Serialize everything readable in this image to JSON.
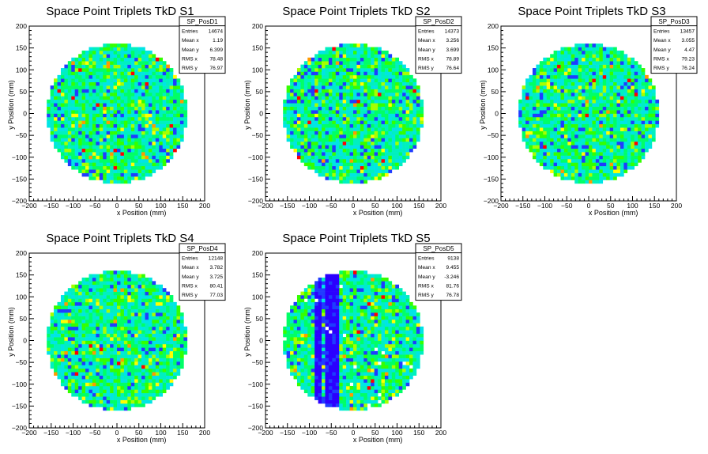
{
  "chart_data": [
    {
      "type": "heatmap",
      "title": "Space Point Triplets TkD S1",
      "xlabel": "x Position (mm)",
      "ylabel": "y Position (mm)",
      "xlim": [
        -200,
        200
      ],
      "ylim": [
        -200,
        200
      ],
      "x_ticks": [
        "−200",
        "−150",
        "−100",
        "−50",
        "0",
        "50",
        "100",
        "150",
        "200"
      ],
      "y_ticks": [
        "−200",
        "−150",
        "−100",
        "−50",
        "0",
        "50",
        "100",
        "150",
        "200"
      ],
      "grid": false,
      "stats": {
        "name": "SP_PosD1",
        "rows": [
          {
            "label": "Entries",
            "value": "14674"
          },
          {
            "label": "Mean x",
            "value": "1.19"
          },
          {
            "label": "Mean y",
            "value": "6.399"
          },
          {
            "label": "RMS x",
            "value": "78.48"
          },
          {
            "label": "RMS y",
            "value": "76.97"
          }
        ]
      },
      "distribution": {
        "shape": "disk",
        "radius": 160,
        "bin_width": 8,
        "pattern": "uniform",
        "seed": 11
      }
    },
    {
      "type": "heatmap",
      "title": "Space Point Triplets TkD S2",
      "xlabel": "x Position (mm)",
      "ylabel": "y Position (mm)",
      "xlim": [
        -200,
        200
      ],
      "ylim": [
        -200,
        200
      ],
      "x_ticks": [
        "−200",
        "−150",
        "−100",
        "−50",
        "0",
        "50",
        "100",
        "150",
        "200"
      ],
      "y_ticks": [
        "−200",
        "−150",
        "−100",
        "−50",
        "0",
        "50",
        "100",
        "150",
        "200"
      ],
      "grid": false,
      "stats": {
        "name": "SP_PosD2",
        "rows": [
          {
            "label": "Entries",
            "value": "14373"
          },
          {
            "label": "Mean x",
            "value": "3.256"
          },
          {
            "label": "Mean y",
            "value": "3.699"
          },
          {
            "label": "RMS x",
            "value": "78.89"
          },
          {
            "label": "RMS y",
            "value": "76.64"
          }
        ]
      },
      "distribution": {
        "shape": "disk",
        "radius": 160,
        "bin_width": 8,
        "pattern": "uniform",
        "seed": 23
      }
    },
    {
      "type": "heatmap",
      "title": "Space Point Triplets TkD S3",
      "xlabel": "x Position (mm)",
      "ylabel": "y Position (mm)",
      "xlim": [
        -200,
        200
      ],
      "ylim": [
        -200,
        200
      ],
      "x_ticks": [
        "−200",
        "−150",
        "−100",
        "−50",
        "0",
        "50",
        "100",
        "150",
        "200"
      ],
      "y_ticks": [
        "−200",
        "−150",
        "−100",
        "−50",
        "0",
        "50",
        "100",
        "150",
        "200"
      ],
      "grid": false,
      "stats": {
        "name": "SP_PosD3",
        "rows": [
          {
            "label": "Entries",
            "value": "13457"
          },
          {
            "label": "Mean x",
            "value": "3.055"
          },
          {
            "label": "Mean y",
            "value": "4.47"
          },
          {
            "label": "RMS x",
            "value": "79.23"
          },
          {
            "label": "RMS y",
            "value": "76.24"
          }
        ]
      },
      "distribution": {
        "shape": "disk",
        "radius": 160,
        "bin_width": 8,
        "pattern": "uniform",
        "seed": 37
      }
    },
    {
      "type": "heatmap",
      "title": "Space Point Triplets TkD S4",
      "xlabel": "x Position (mm)",
      "ylabel": "y Position (mm)",
      "xlim": [
        -200,
        200
      ],
      "ylim": [
        -200,
        200
      ],
      "x_ticks": [
        "−200",
        "−150",
        "−100",
        "−50",
        "0",
        "50",
        "100",
        "150",
        "200"
      ],
      "y_ticks": [
        "−200",
        "−150",
        "−100",
        "−50",
        "0",
        "50",
        "100",
        "150",
        "200"
      ],
      "grid": false,
      "stats": {
        "name": "SP_PosD4",
        "rows": [
          {
            "label": "Entries",
            "value": "12148"
          },
          {
            "label": "Mean x",
            "value": "3.782"
          },
          {
            "label": "Mean y",
            "value": "3.725"
          },
          {
            "label": "RMS x",
            "value": "80.41"
          },
          {
            "label": "RMS y",
            "value": "77.03"
          }
        ]
      },
      "distribution": {
        "shape": "disk",
        "radius": 160,
        "bin_width": 8,
        "pattern": "uniform",
        "seed": 51
      }
    },
    {
      "type": "heatmap",
      "title": "Space Point Triplets TkD S5",
      "xlabel": "x Position (mm)",
      "ylabel": "y Position (mm)",
      "xlim": [
        -200,
        200
      ],
      "ylim": [
        -200,
        200
      ],
      "x_ticks": [
        "−200",
        "−150",
        "−100",
        "−50",
        "0",
        "50",
        "100",
        "150",
        "200"
      ],
      "y_ticks": [
        "−200",
        "−150",
        "−100",
        "−50",
        "0",
        "50",
        "100",
        "150",
        "200"
      ],
      "grid": false,
      "stats": {
        "name": "SP_PosD5",
        "rows": [
          {
            "label": "Entries",
            "value": "9138"
          },
          {
            "label": "Mean x",
            "value": "9.455"
          },
          {
            "label": "Mean y",
            "value": "-3.246"
          },
          {
            "label": "RMS x",
            "value": "81.76"
          },
          {
            "label": "RMS y",
            "value": "76.78"
          }
        ]
      },
      "distribution": {
        "shape": "disk",
        "radius": 160,
        "bin_width": 8,
        "pattern": "vertical-dead-bands",
        "dead_x": [
          -80,
          -56,
          -40
        ],
        "seed": 77
      }
    }
  ],
  "palette": [
    "#2b00ff",
    "#1f3cff",
    "#00a8ff",
    "#00e5e5",
    "#00f0c0",
    "#00ff66",
    "#33ff00",
    "#a6ff00",
    "#ffff00",
    "#ff9900",
    "#ff0000"
  ],
  "colors": {
    "background": "#ffffff",
    "frame": "#000000",
    "empty_bin": "#ffffff"
  }
}
